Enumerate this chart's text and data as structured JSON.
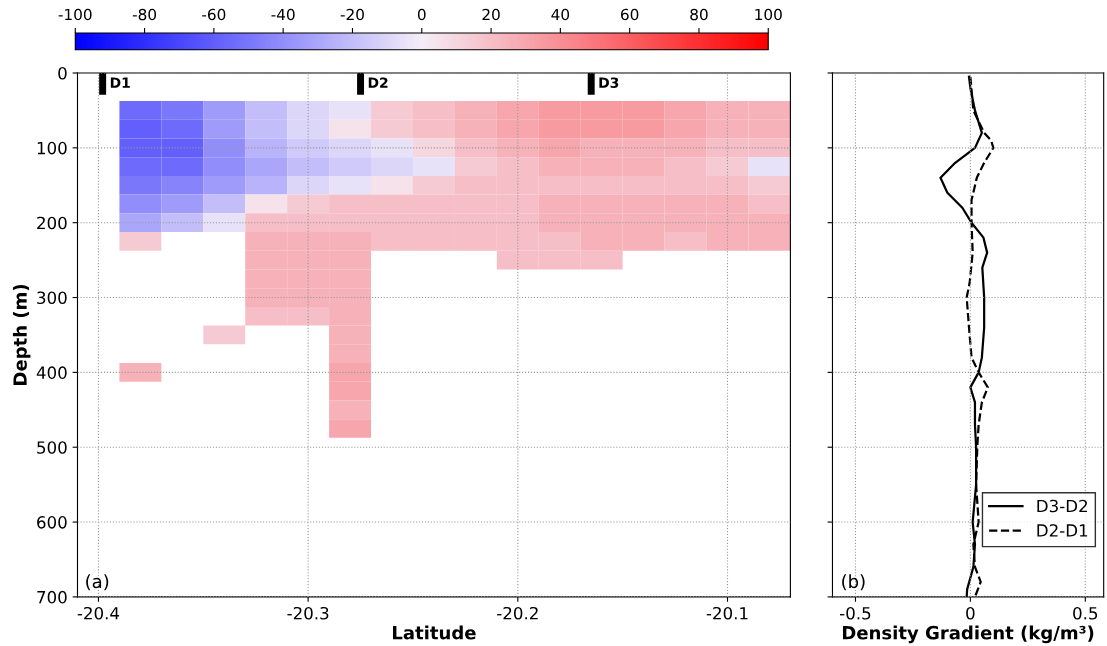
{
  "chart_data": [
    {
      "type": "heatmap",
      "xlabel": "Latitude",
      "ylabel": "Depth (m)",
      "x": [
        -20.38,
        -20.36,
        -20.34,
        -20.32,
        -20.3,
        -20.28,
        -20.26,
        -20.24,
        -20.22,
        -20.2,
        -20.18,
        -20.16,
        -20.14,
        -20.12,
        -20.1,
        -20.08
      ],
      "y": [
        50,
        75,
        100,
        125,
        150,
        175,
        200,
        225,
        250,
        275,
        300,
        325,
        350,
        375,
        400,
        425,
        450,
        475
      ],
      "cells": [
        [
          -55,
          -50,
          -35,
          -20,
          -10,
          -5,
          15,
          20,
          25,
          30,
          35,
          35,
          35,
          30,
          25,
          25
        ],
        [
          -60,
          -55,
          -35,
          -20,
          -10,
          5,
          15,
          20,
          25,
          30,
          35,
          35,
          35,
          30,
          25,
          25
        ],
        [
          -60,
          -60,
          -40,
          -25,
          -15,
          -10,
          -5,
          10,
          20,
          25,
          30,
          25,
          25,
          25,
          20,
          20
        ],
        [
          -55,
          -55,
          -40,
          -30,
          -20,
          -15,
          -10,
          -5,
          15,
          20,
          25,
          25,
          25,
          20,
          15,
          -5
        ],
        [
          -50,
          -45,
          -35,
          -25,
          -10,
          -5,
          5,
          15,
          20,
          20,
          20,
          20,
          20,
          20,
          20,
          15
        ],
        [
          -40,
          -35,
          -20,
          5,
          15,
          20,
          20,
          20,
          20,
          20,
          25,
          25,
          25,
          25,
          25,
          20
        ],
        [
          -30,
          -20,
          -5,
          20,
          20,
          20,
          20,
          20,
          20,
          20,
          25,
          25,
          25,
          25,
          25,
          25
        ],
        [
          15,
          null,
          null,
          25,
          25,
          25,
          20,
          20,
          20,
          20,
          20,
          25,
          25,
          20,
          25,
          25
        ],
        [
          null,
          null,
          null,
          25,
          25,
          25,
          null,
          null,
          null,
          20,
          20,
          20,
          null,
          null,
          null,
          null
        ],
        [
          null,
          null,
          null,
          25,
          25,
          25,
          null,
          null,
          null,
          null,
          null,
          null,
          null,
          null,
          null,
          null
        ],
        [
          null,
          null,
          null,
          25,
          25,
          25,
          null,
          null,
          null,
          null,
          null,
          null,
          null,
          null,
          null,
          null
        ],
        [
          null,
          null,
          null,
          20,
          20,
          25,
          null,
          null,
          null,
          null,
          null,
          null,
          null,
          null,
          null,
          null
        ],
        [
          null,
          null,
          15,
          null,
          null,
          25,
          null,
          null,
          null,
          null,
          null,
          null,
          null,
          null,
          null,
          null
        ],
        [
          null,
          null,
          null,
          null,
          null,
          25,
          null,
          null,
          null,
          null,
          null,
          null,
          null,
          null,
          null,
          null
        ],
        [
          25,
          null,
          null,
          null,
          null,
          30,
          null,
          null,
          null,
          null,
          null,
          null,
          null,
          null,
          null,
          null
        ],
        [
          null,
          null,
          null,
          null,
          null,
          30,
          null,
          null,
          null,
          null,
          null,
          null,
          null,
          null,
          null,
          null
        ],
        [
          null,
          null,
          null,
          null,
          null,
          25,
          null,
          null,
          null,
          null,
          null,
          null,
          null,
          null,
          null,
          null
        ],
        [
          null,
          null,
          null,
          null,
          null,
          30,
          null,
          null,
          null,
          null,
          null,
          null,
          null,
          null,
          null,
          null
        ]
      ],
      "clim": [
        -100,
        100
      ],
      "cticks": [
        -100,
        -80,
        -60,
        -40,
        -20,
        0,
        20,
        40,
        60,
        80,
        100
      ],
      "xlim": [
        -20.41,
        -20.07
      ],
      "xticks": [
        -20.4,
        -20.3,
        -20.2,
        -20.1
      ],
      "ylim": [
        700,
        0
      ],
      "yticks": [
        0,
        100,
        200,
        300,
        400,
        500,
        600,
        700
      ],
      "grid": true,
      "ref_lines": [
        {
          "axis": "x",
          "value": -20.398,
          "label": "D1"
        },
        {
          "axis": "x",
          "value": -20.275,
          "label": "D2"
        },
        {
          "axis": "x",
          "value": -20.165,
          "label": "D3"
        }
      ],
      "annotations": [
        "(a)"
      ]
    },
    {
      "type": "line",
      "orientation": "horizontal",
      "xlabel": "Density Gradient (kg/m³)",
      "xlim": [
        -0.6,
        0.58
      ],
      "xticks": [
        -0.5,
        0,
        0.5
      ],
      "ylim": [
        700,
        0
      ],
      "yticks": [
        0,
        100,
        200,
        300,
        400,
        500,
        600,
        700
      ],
      "tick_labels": "x",
      "grid": true,
      "legend": "bottom right",
      "annotations": [
        "(b)"
      ],
      "series": [
        {
          "name": "D3-D2",
          "color": "#000000",
          "line_style": "solid",
          "x": [
            5,
            20,
            50,
            80,
            100,
            120,
            140,
            160,
            180,
            200,
            220,
            240,
            260,
            300,
            340,
            380,
            400,
            420,
            440,
            470,
            500,
            550,
            600,
            630,
            660,
            690,
            700
          ],
          "values": [
            -0.006,
            0,
            0.02,
            0.05,
            0.02,
            -0.066,
            -0.13,
            -0.1,
            -0.035,
            0.005,
            0.057,
            0.073,
            0.052,
            0.06,
            0.06,
            0.05,
            0.036,
            0,
            0.02,
            0.02,
            0.025,
            0.025,
            0.01,
            0.02,
            0.013,
            -0.014,
            -0.016
          ]
        },
        {
          "name": "D2-D1",
          "color": "#000000",
          "line_style": "dashed",
          "x": [
            5,
            50,
            80,
            90,
            100,
            120,
            140,
            170,
            200,
            240,
            280,
            300,
            340,
            380,
            400,
            420,
            440,
            470,
            500,
            550,
            600,
            630,
            660,
            680,
            700
          ],
          "values": [
            0,
            0.013,
            0.06,
            0.09,
            0.1,
            0.06,
            0.028,
            0.005,
            0.005,
            0.01,
            -0.003,
            -0.016,
            -0.006,
            0.005,
            0.036,
            0.076,
            0.05,
            0.036,
            0.03,
            0.025,
            0.036,
            0.013,
            0.02,
            0.045,
            0.02
          ]
        }
      ]
    }
  ]
}
